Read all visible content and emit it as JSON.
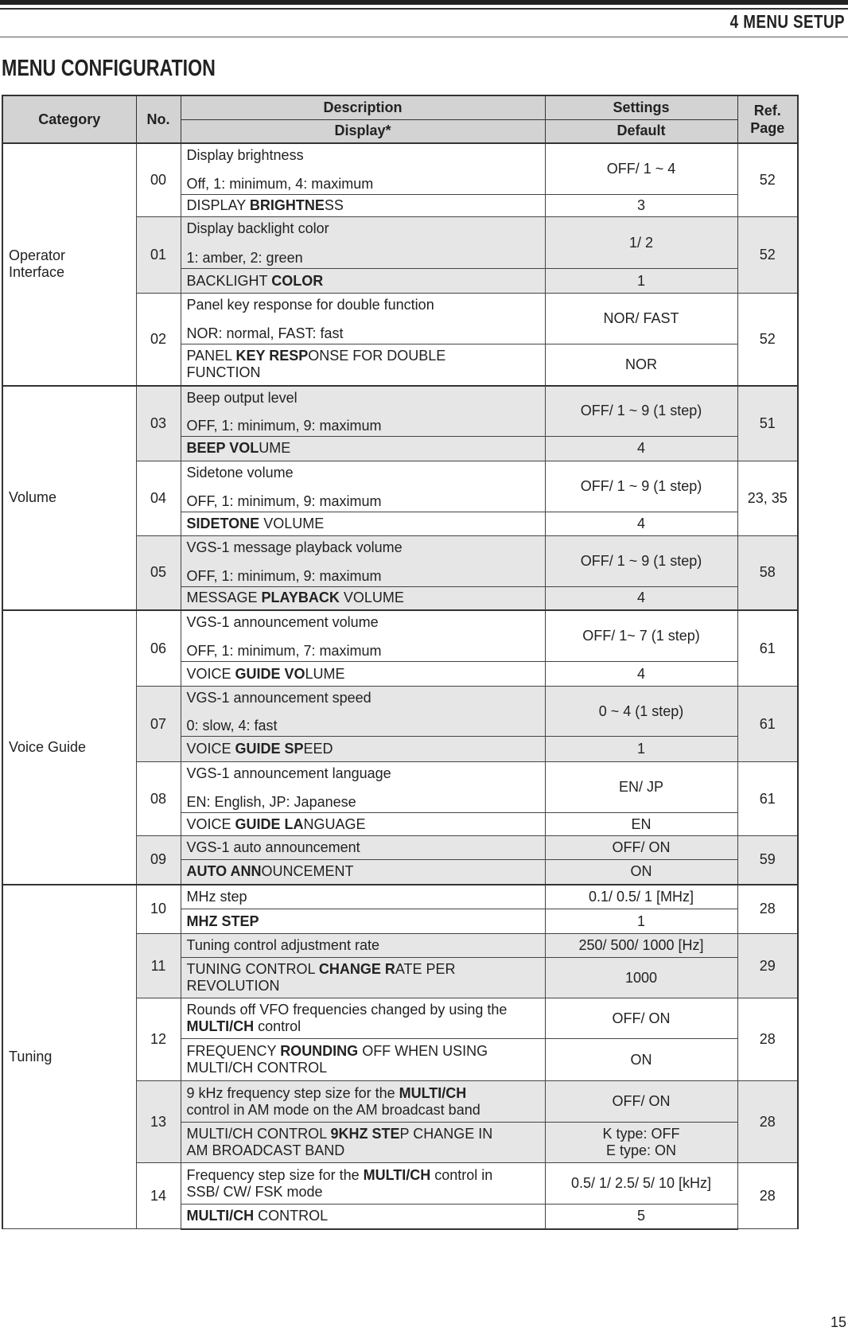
{
  "header": {
    "section": "4  MENU SETUP",
    "title": "MENU CONFIGURATION",
    "page_number": "15"
  },
  "columns": {
    "category": "Category",
    "no": "No.",
    "description": "Description",
    "display": "Display*",
    "settings": "Settings",
    "default": "Default",
    "ref_page": [
      "Ref.",
      "Page"
    ]
  },
  "colors": {
    "header_bg": "#d3d3d3",
    "shaded_row": "#e6e6e6"
  },
  "groups": [
    {
      "category": [
        "Operator",
        "Interface"
      ],
      "items": [
        0,
        1,
        2
      ]
    },
    {
      "category": [
        "Volume"
      ],
      "items": [
        3,
        4,
        5
      ]
    },
    {
      "category": [
        "Voice Guide"
      ],
      "items": [
        6,
        7,
        8,
        9
      ]
    },
    {
      "category": [
        "Tuning"
      ],
      "items": [
        10,
        11,
        12,
        13,
        14
      ]
    }
  ],
  "items": [
    {
      "no": "00",
      "desc": [
        [
          [
            "Display brightness",
            0
          ]
        ],
        [
          [
            "Off, 1: minimum, 4: maximum",
            0
          ]
        ]
      ],
      "display": [
        [
          [
            "DISPLAY ",
            0
          ],
          [
            "BRIGHTNE",
            1
          ],
          [
            "SS",
            0
          ]
        ]
      ],
      "settings": [
        "OFF/ 1 ~ 4"
      ],
      "default": [
        "3"
      ],
      "ref": "52"
    },
    {
      "no": "01",
      "desc": [
        [
          [
            "Display backlight color",
            0
          ]
        ],
        [
          [
            "1: amber, 2: green",
            0
          ]
        ]
      ],
      "display": [
        [
          [
            "BACKLIGHT ",
            0
          ],
          [
            "COLOR",
            1
          ]
        ]
      ],
      "settings": [
        "1/ 2"
      ],
      "default": [
        "1"
      ],
      "ref": "52"
    },
    {
      "no": "02",
      "desc": [
        [
          [
            "Panel key response for double function",
            0
          ]
        ],
        [
          [
            "NOR: normal, FAST: fast",
            0
          ]
        ]
      ],
      "display": [
        [
          [
            "PANEL ",
            0
          ],
          [
            "KEY RESP",
            1
          ],
          [
            "ONSE FOR DOUBLE",
            0
          ]
        ],
        [
          [
            "FUNCTION",
            0
          ]
        ]
      ],
      "settings": [
        "NOR/ FAST"
      ],
      "default": [
        "NOR"
      ],
      "ref": "52"
    },
    {
      "no": "03",
      "desc": [
        [
          [
            "Beep output level",
            0
          ]
        ],
        [
          [
            "OFF, 1: minimum, 9: maximum",
            0
          ]
        ]
      ],
      "display": [
        [
          [
            "BEEP VOL",
            1
          ],
          [
            "UME",
            0
          ]
        ]
      ],
      "settings": [
        "OFF/ 1 ~ 9 (1 step)"
      ],
      "default": [
        "4"
      ],
      "ref": "51"
    },
    {
      "no": "04",
      "desc": [
        [
          [
            "Sidetone volume",
            0
          ]
        ],
        [
          [
            "OFF, 1: minimum, 9: maximum",
            0
          ]
        ]
      ],
      "display": [
        [
          [
            "SIDETONE",
            1
          ],
          [
            " VOLUME",
            0
          ]
        ]
      ],
      "settings": [
        "OFF/ 1 ~ 9 (1 step)"
      ],
      "default": [
        "4"
      ],
      "ref": "23, 35"
    },
    {
      "no": "05",
      "desc": [
        [
          [
            "VGS-1 message playback volume",
            0
          ]
        ],
        [
          [
            "OFF, 1: minimum, 9: maximum",
            0
          ]
        ]
      ],
      "display": [
        [
          [
            "MESSAGE ",
            0
          ],
          [
            "PLAYBACK",
            1
          ],
          [
            " VOLUME",
            0
          ]
        ]
      ],
      "settings": [
        "OFF/ 1 ~ 9 (1 step)"
      ],
      "default": [
        "4"
      ],
      "ref": "58"
    },
    {
      "no": "06",
      "desc": [
        [
          [
            "VGS-1 announcement volume",
            0
          ]
        ],
        [
          [
            "OFF, 1: minimum, 7: maximum",
            0
          ]
        ]
      ],
      "display": [
        [
          [
            "VOICE ",
            0
          ],
          [
            "GUIDE VO",
            1
          ],
          [
            "LUME",
            0
          ]
        ]
      ],
      "settings": [
        "OFF/ 1~ 7 (1 step)"
      ],
      "default": [
        "4"
      ],
      "ref": "61"
    },
    {
      "no": "07",
      "desc": [
        [
          [
            "VGS-1 announcement speed",
            0
          ]
        ],
        [
          [
            "0: slow, 4: fast",
            0
          ]
        ]
      ],
      "display": [
        [
          [
            "VOICE ",
            0
          ],
          [
            "GUIDE SP",
            1
          ],
          [
            "EED",
            0
          ]
        ]
      ],
      "settings": [
        "0 ~ 4 (1 step)"
      ],
      "default": [
        "1"
      ],
      "ref": "61"
    },
    {
      "no": "08",
      "desc": [
        [
          [
            "VGS-1 announcement language",
            0
          ]
        ],
        [
          [
            "EN: English, JP: Japanese",
            0
          ]
        ]
      ],
      "display": [
        [
          [
            "VOICE ",
            0
          ],
          [
            "GUIDE LA",
            1
          ],
          [
            "NGUAGE",
            0
          ]
        ]
      ],
      "settings": [
        "EN/ JP"
      ],
      "default": [
        "EN"
      ],
      "ref": "61"
    },
    {
      "no": "09",
      "desc": [
        [
          [
            "VGS-1 auto announcement",
            0
          ]
        ]
      ],
      "display": [
        [
          [
            "AUTO ANN",
            1
          ],
          [
            "OUNCEMENT",
            0
          ]
        ]
      ],
      "settings": [
        "OFF/ ON"
      ],
      "default": [
        "ON"
      ],
      "ref": "59"
    },
    {
      "no": "10",
      "desc": [
        [
          [
            "MHz step",
            0
          ]
        ]
      ],
      "display": [
        [
          [
            "MHZ STEP",
            1
          ]
        ]
      ],
      "settings": [
        "0.1/ 0.5/ 1 [MHz]"
      ],
      "default": [
        "1"
      ],
      "ref": "28"
    },
    {
      "no": "11",
      "desc": [
        [
          [
            "Tuning control adjustment rate",
            0
          ]
        ]
      ],
      "display": [
        [
          [
            "TUNING CONTROL ",
            0
          ],
          [
            "CHANGE R",
            1
          ],
          [
            "ATE PER",
            0
          ]
        ],
        [
          [
            "REVOLUTION",
            0
          ]
        ]
      ],
      "settings": [
        "250/ 500/ 1000 [Hz]"
      ],
      "default": [
        "1000"
      ],
      "ref": "29"
    },
    {
      "no": "12",
      "desc": [
        [
          [
            "Rounds off VFO frequencies changed by using the",
            0
          ]
        ],
        [
          [
            "MULTI/CH",
            1
          ],
          [
            " control",
            0
          ]
        ]
      ],
      "display": [
        [
          [
            "FREQUENCY ",
            0
          ],
          [
            "ROUNDING",
            1
          ],
          [
            " OFF WHEN USING",
            0
          ]
        ],
        [
          [
            "MULTI/CH CONTROL",
            0
          ]
        ]
      ],
      "settings": [
        "OFF/ ON"
      ],
      "default": [
        "ON"
      ],
      "ref": "28"
    },
    {
      "no": "13",
      "desc": [
        [
          [
            "9 kHz frequency step size for the ",
            0
          ],
          [
            "MULTI/CH",
            1
          ]
        ],
        [
          [
            "control in AM mode on the AM broadcast band",
            0
          ]
        ]
      ],
      "display": [
        [
          [
            "MULTI/CH CONTROL ",
            0
          ],
          [
            "9KHZ STE",
            1
          ],
          [
            "P CHANGE IN",
            0
          ]
        ],
        [
          [
            "AM BROADCAST BAND",
            0
          ]
        ]
      ],
      "settings": [
        "OFF/ ON"
      ],
      "default": [
        "K type:  OFF",
        "E type:  ON"
      ],
      "ref": "28"
    },
    {
      "no": "14",
      "desc": [
        [
          [
            "Frequency step size for the ",
            0
          ],
          [
            "MULTI/CH",
            1
          ],
          [
            " control in",
            0
          ]
        ],
        [
          [
            "SSB/ CW/ FSK mode",
            0
          ]
        ]
      ],
      "display": [
        [
          [
            "MULTI/CH",
            1
          ],
          [
            " CONTROL",
            0
          ]
        ]
      ],
      "settings": [
        "0.5/ 1/ 2.5/ 5/ 10 [kHz]"
      ],
      "default": [
        "5"
      ],
      "ref": "28"
    }
  ]
}
